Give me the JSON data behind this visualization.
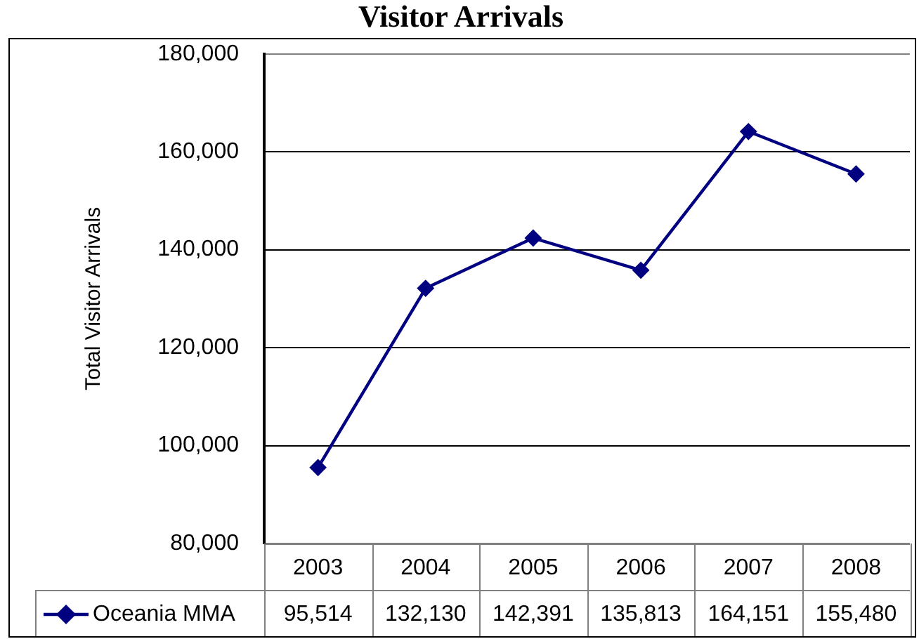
{
  "chart_data": {
    "type": "line",
    "title": "Visitor Arrivals",
    "ylabel": "Total Visitor Arrivals",
    "categories": [
      "2003",
      "2004",
      "2005",
      "2006",
      "2007",
      "2008"
    ],
    "series": [
      {
        "name": "Oceania MMA",
        "color": "#000080",
        "values": [
          95514,
          132130,
          142391,
          135813,
          164151,
          155480
        ],
        "value_labels": [
          "95,514",
          "132,130",
          "142,391",
          "135,813",
          "164,151",
          "155,480"
        ]
      }
    ],
    "ylim": [
      80000,
      180000
    ],
    "yticks": [
      {
        "value": 80000,
        "label": "80,000"
      },
      {
        "value": 100000,
        "label": "100,000"
      },
      {
        "value": 120000,
        "label": "120,000"
      },
      {
        "value": 140000,
        "label": "140,000"
      },
      {
        "value": 160000,
        "label": "160,000"
      },
      {
        "value": 180000,
        "label": "180,000"
      }
    ],
    "grid": "y",
    "legend": "bottom",
    "marker": "diamond",
    "line_style": "solid"
  }
}
